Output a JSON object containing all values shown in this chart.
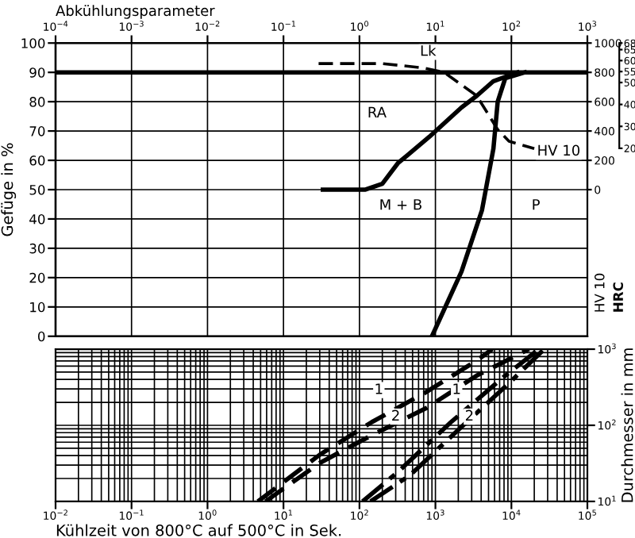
{
  "chart_data": [
    {
      "type": "line",
      "xlabel": "Abkühlungsparameter",
      "ylabel": "Gefüge in %",
      "y2label": "HV 10",
      "y3label": "HRC",
      "log": "x",
      "grid": true,
      "xlim": [
        0.0001,
        1000
      ],
      "ylim": [
        0,
        100
      ],
      "y2lim": [
        -1000,
        1000
      ],
      "y3lim": [
        -65.7,
        68
      ],
      "xticks": [
        {
          "value": 0.0001,
          "label": "10$^{−4}$"
        },
        {
          "value": 0.001,
          "label": "10$^{−3}$"
        },
        {
          "value": 0.01,
          "label": "10$^{−2}$"
        },
        {
          "value": 0.1,
          "label": "10$^{−1}$"
        },
        {
          "value": 1,
          "label": "10$^{0}$"
        },
        {
          "value": 10,
          "label": "10$^{1}$"
        },
        {
          "value": 100,
          "label": "10$^{2}$"
        },
        {
          "value": 1000,
          "label": "10$^{3}$"
        }
      ],
      "yticks": [
        0,
        10,
        20,
        30,
        40,
        50,
        60,
        70,
        80,
        90,
        100
      ],
      "y2ticks": [
        0,
        200,
        400,
        600,
        800,
        1000
      ],
      "y3ticks": [
        68,
        65,
        60,
        55,
        50,
        40,
        30,
        20
      ],
      "ref_lines": [
        {
          "axis": "y",
          "value": 90,
          "color": "#000000",
          "line_style": "solid"
        }
      ],
      "series": [
        {
          "color": "#000000",
          "line_style": "solid",
          "x": [
            0.33,
            1.2,
            2,
            3.2,
            8.3,
            22,
            35,
            58,
            120
          ],
          "values": [
            50,
            50,
            52,
            59,
            68,
            78,
            82,
            87,
            90
          ]
        },
        {
          "color": "#000000",
          "line_style": "solid",
          "x": [
            9,
            22,
            41,
            58,
            66,
            83,
            150
          ],
          "values": [
            0,
            22,
            43,
            64,
            80,
            88,
            90
          ]
        },
        {
          "color": "#000000",
          "line_style": "dashed",
          "axis": "y2",
          "x": [
            0.29,
            2,
            7,
            13,
            35,
            66,
            93,
            200
          ],
          "values": [
            860,
            860,
            830,
            800,
            640,
            410,
            330,
            280
          ]
        }
      ],
      "annotations": [
        {
          "text": "Lk",
          "x": 8,
          "y": 97
        },
        {
          "text": "RA",
          "x": 1.7,
          "y": 76
        },
        {
          "text": "M + B",
          "x": 3.5,
          "y": 44.5
        },
        {
          "text": "P",
          "x": 210,
          "y": 44.5
        },
        {
          "text": "HV 10",
          "x": 420,
          "y": 63
        }
      ]
    },
    {
      "type": "line",
      "xlabel": "Kühlzeit von 800°C auf 500°C in Sek.",
      "ylabel": "Durchmesser in mm",
      "log": "xy",
      "grid": true,
      "xlim": [
        0.01,
        100000
      ],
      "ylim": [
        10,
        1000
      ],
      "xticks": [
        {
          "value": 0.01,
          "label": "10$^{−2}$"
        },
        {
          "value": 0.1,
          "label": "10$^{−1}$"
        },
        {
          "value": 1,
          "label": "10$^{0}$"
        },
        {
          "value": 10,
          "label": "10$^{1}$"
        },
        {
          "value": 100,
          "label": "10$^{2}$"
        },
        {
          "value": 1000,
          "label": "10$^{3}$"
        },
        {
          "value": 10000,
          "label": "10$^{4}$"
        },
        {
          "value": 100000,
          "label": "10$^{5}$"
        }
      ],
      "yticks": [
        {
          "value": 10,
          "label": "10$^{1}$"
        },
        {
          "value": 100,
          "label": "10$^{2}$"
        },
        {
          "value": 1000,
          "label": "10$^{3}$"
        }
      ],
      "series": [
        {
          "color": "#000000",
          "line_style": "dashed",
          "x": [
            4.6,
            30,
            145,
            740,
            3500,
            5600
          ],
          "values": [
            10,
            41,
            110,
            270,
            710,
            1000
          ]
        },
        {
          "color": "#000000",
          "line_style": "dashed",
          "x": [
            5.8,
            30,
            145,
            740,
            3500,
            17000
          ],
          "values": [
            10,
            32,
            74,
            166,
            450,
            1000
          ]
        },
        {
          "color": "#000000",
          "line_style": "dashdot",
          "x": [
            110,
            330,
            1600,
            7900,
            23000
          ],
          "values": [
            10,
            25,
            110,
            430,
            1000
          ]
        },
        {
          "color": "#000000",
          "line_style": "dashdot",
          "x": [
            140,
            460,
            2200,
            9100,
            27000
          ],
          "values": [
            10,
            22,
            95,
            350,
            1000
          ]
        }
      ],
      "annotations": [
        {
          "text": "1",
          "x": 180,
          "y": 290
        },
        {
          "text": "2",
          "x": 300,
          "y": 130
        },
        {
          "text": "1",
          "x": 1900,
          "y": 290
        },
        {
          "text": "2",
          "x": 2800,
          "y": 130
        }
      ]
    }
  ]
}
